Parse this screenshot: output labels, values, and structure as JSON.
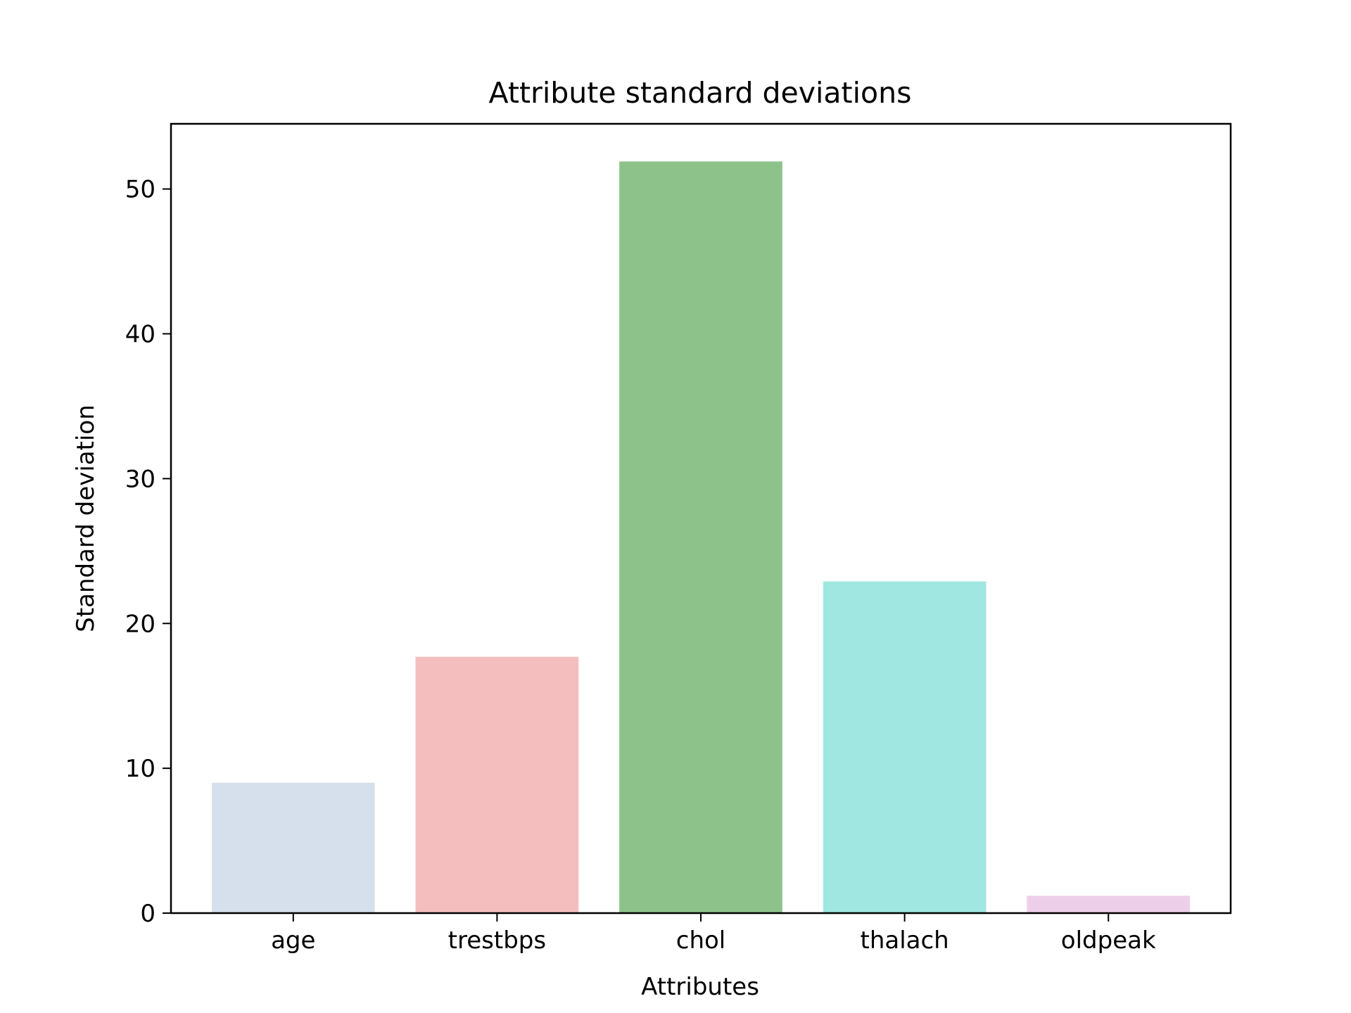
{
  "chart_data": {
    "type": "bar",
    "title": "Attribute standard deviations",
    "xlabel": "Attributes",
    "ylabel": "Standard deviation",
    "categories": [
      "age",
      "trestbps",
      "chol",
      "thalach",
      "oldpeak"
    ],
    "values": [
      9.0,
      17.7,
      51.9,
      22.9,
      1.2
    ],
    "colors": [
      "#d6e0ec",
      "#f5bebe",
      "#8dc38b",
      "#a0e6e1",
      "#eecfea"
    ],
    "ylim": [
      0,
      54.5
    ],
    "yticks": [
      0,
      10,
      20,
      30,
      40,
      50
    ],
    "grid": false,
    "legend": "none"
  }
}
